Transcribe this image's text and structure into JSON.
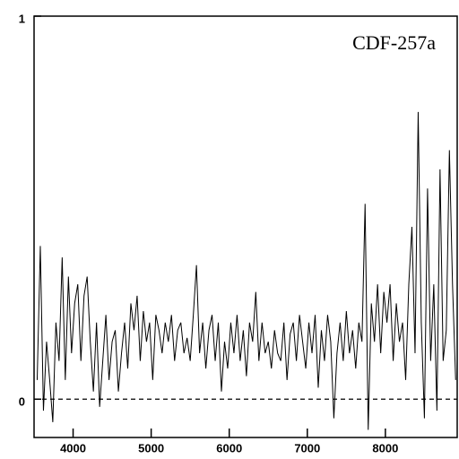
{
  "chart_data": {
    "type": "line",
    "annotation": "CDF-257a",
    "x": [
      3540,
      3580,
      3620,
      3660,
      3700,
      3740,
      3780,
      3820,
      3860,
      3900,
      3940,
      3980,
      4020,
      4060,
      4100,
      4140,
      4180,
      4220,
      4260,
      4300,
      4340,
      4380,
      4420,
      4460,
      4500,
      4540,
      4580,
      4620,
      4660,
      4700,
      4740,
      4780,
      4820,
      4860,
      4900,
      4940,
      4980,
      5020,
      5060,
      5100,
      5140,
      5180,
      5220,
      5260,
      5300,
      5340,
      5380,
      5420,
      5460,
      5500,
      5540,
      5580,
      5620,
      5660,
      5700,
      5740,
      5780,
      5820,
      5860,
      5900,
      5940,
      5980,
      6020,
      6060,
      6100,
      6140,
      6180,
      6220,
      6260,
      6300,
      6340,
      6380,
      6420,
      6460,
      6500,
      6540,
      6580,
      6620,
      6660,
      6700,
      6740,
      6780,
      6820,
      6860,
      6900,
      6940,
      6980,
      7020,
      7060,
      7100,
      7140,
      7180,
      7220,
      7260,
      7300,
      7340,
      7380,
      7420,
      7460,
      7500,
      7540,
      7580,
      7620,
      7660,
      7700,
      7740,
      7780,
      7820,
      7860,
      7900,
      7940,
      7980,
      8020,
      8060,
      8100,
      8140,
      8180,
      8220,
      8260,
      8300,
      8340,
      8380,
      8420,
      8460,
      8500,
      8540,
      8580,
      8620,
      8660,
      8700,
      8740,
      8780,
      8820,
      8860,
      8900
    ],
    "values": [
      0.05,
      0.4,
      -0.03,
      0.15,
      0.05,
      -0.06,
      0.2,
      0.1,
      0.37,
      0.05,
      0.32,
      0.12,
      0.25,
      0.3,
      0.1,
      0.27,
      0.32,
      0.15,
      0.02,
      0.2,
      -0.02,
      0.1,
      0.22,
      0.05,
      0.15,
      0.18,
      0.02,
      0.12,
      0.2,
      0.08,
      0.25,
      0.18,
      0.27,
      0.1,
      0.23,
      0.15,
      0.2,
      0.05,
      0.22,
      0.18,
      0.12,
      0.2,
      0.15,
      0.22,
      0.1,
      0.18,
      0.2,
      0.12,
      0.16,
      0.1,
      0.22,
      0.35,
      0.12,
      0.2,
      0.08,
      0.18,
      0.22,
      0.1,
      0.2,
      0.02,
      0.15,
      0.08,
      0.2,
      0.12,
      0.22,
      0.1,
      0.18,
      0.06,
      0.2,
      0.15,
      0.28,
      0.1,
      0.2,
      0.12,
      0.15,
      0.08,
      0.18,
      0.12,
      0.1,
      0.2,
      0.05,
      0.17,
      0.2,
      0.1,
      0.22,
      0.15,
      0.08,
      0.2,
      0.12,
      0.22,
      0.03,
      0.18,
      0.1,
      0.22,
      0.15,
      -0.05,
      0.12,
      0.2,
      0.1,
      0.23,
      0.12,
      0.18,
      0.08,
      0.2,
      0.15,
      0.51,
      -0.08,
      0.25,
      0.15,
      0.3,
      0.12,
      0.28,
      0.2,
      0.3,
      0.1,
      0.25,
      0.15,
      0.2,
      0.05,
      0.3,
      0.45,
      0.12,
      0.75,
      0.2,
      -0.05,
      0.55,
      0.1,
      0.3,
      -0.03,
      0.6,
      0.1,
      0.18,
      0.65,
      0.3,
      0.05
    ],
    "color": "#000000",
    "xlim": [
      3500,
      8920
    ],
    "xticks": [
      4000,
      5000,
      6000,
      7000,
      8000
    ],
    "ylim": [
      -0.1,
      1
    ],
    "yticks": [
      0,
      1
    ],
    "hline": {
      "y": 0,
      "style": "dashed"
    }
  }
}
